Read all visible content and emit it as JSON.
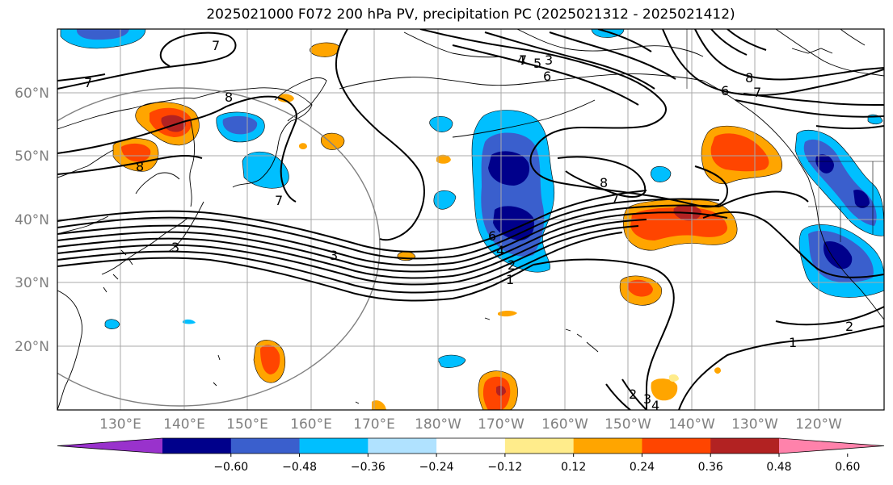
{
  "title": "2025021000 F072 200 hPa PV, precipitation PC (2025021312 - 2025021412)",
  "lat_labels": [
    "60°N",
    "50°N",
    "40°N",
    "30°N",
    "20°N"
  ],
  "lon_labels": [
    "130°E",
    "140°E",
    "150°E",
    "160°E",
    "170°E",
    "180°W",
    "170°W",
    "160°W",
    "150°W",
    "140°W",
    "130°W",
    "120°W"
  ],
  "colorbar": {
    "ticks": [
      "−0.60",
      "−0.48",
      "−0.36",
      "−0.24",
      "−0.12",
      "0.12",
      "0.24",
      "0.36",
      "0.48",
      "0.60"
    ],
    "colors": [
      "#9932cc",
      "#00008b",
      "#3a5fcd",
      "#00bfff",
      "#b0e2ff",
      "#ffffff",
      "#ffec8b",
      "#ffa500",
      "#ff4500",
      "#b22222",
      "#ff82ab"
    ]
  },
  "pv_labels": [
    "7",
    "7",
    "8",
    "8",
    "7",
    "7",
    "6",
    "5",
    "4",
    "3",
    "8",
    "6",
    "7",
    "8",
    "7",
    "6",
    "4",
    "2",
    "1",
    "3",
    "3",
    "2",
    "1",
    "2",
    "3",
    "4"
  ]
}
